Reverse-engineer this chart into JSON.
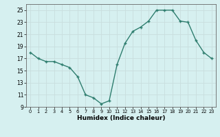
{
  "x": [
    0,
    1,
    2,
    3,
    4,
    5,
    6,
    7,
    8,
    9,
    10,
    11,
    12,
    13,
    14,
    15,
    16,
    17,
    18,
    19,
    20,
    21,
    22,
    23
  ],
  "y": [
    18,
    17,
    16.5,
    16.5,
    16,
    15.5,
    14,
    11,
    10.5,
    9.5,
    10,
    16,
    19.5,
    21.5,
    22.2,
    23.2,
    25,
    25,
    25,
    23.2,
    23,
    20,
    18,
    17
  ],
  "line_color": "#2e7d6e",
  "marker": "+",
  "bg_color": "#d6f0f0",
  "grid_color": "#c8dede",
  "xlabel": "Humidex (Indice chaleur)",
  "ylim": [
    9,
    26
  ],
  "xlim": [
    -0.5,
    23.5
  ],
  "yticks": [
    9,
    11,
    13,
    15,
    17,
    19,
    21,
    23,
    25
  ],
  "xticks": [
    0,
    1,
    2,
    3,
    4,
    5,
    6,
    7,
    8,
    9,
    10,
    11,
    12,
    13,
    14,
    15,
    16,
    17,
    18,
    19,
    20,
    21,
    22,
    23
  ],
  "xtick_labels": [
    "0",
    "1",
    "2",
    "3",
    "4",
    "5",
    "6",
    "7",
    "8",
    "9",
    "10",
    "11",
    "12",
    "13",
    "14",
    "15",
    "16",
    "17",
    "18",
    "19",
    "20",
    "21",
    "22",
    "23"
  ]
}
